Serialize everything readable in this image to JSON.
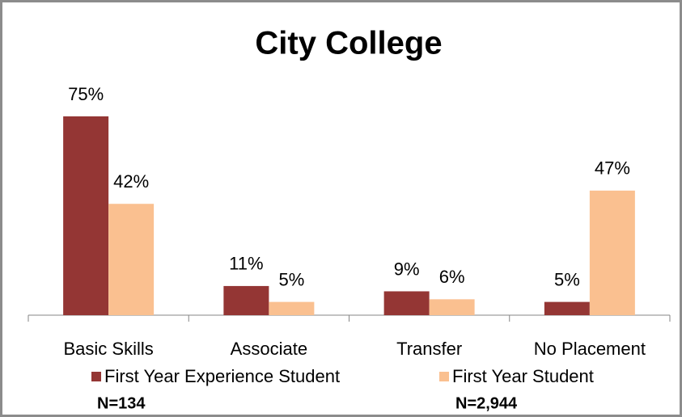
{
  "chart_data": {
    "type": "bar",
    "title": "City College",
    "categories": [
      "Basic Skills",
      "Associate",
      "Transfer",
      "No Placement"
    ],
    "series": [
      {
        "name": "First Year Experience Student",
        "color": "#943634",
        "values": [
          75,
          11,
          9,
          5
        ],
        "value_labels": [
          "75%",
          "11%",
          "9%",
          "5%"
        ]
      },
      {
        "name": "First Year Student",
        "color": "#fac090",
        "values": [
          42,
          5,
          6,
          47
        ],
        "value_labels": [
          "42%",
          "5%",
          "6%",
          "47%"
        ]
      }
    ],
    "annotations": [
      "N=134",
      "N=2,944"
    ]
  }
}
